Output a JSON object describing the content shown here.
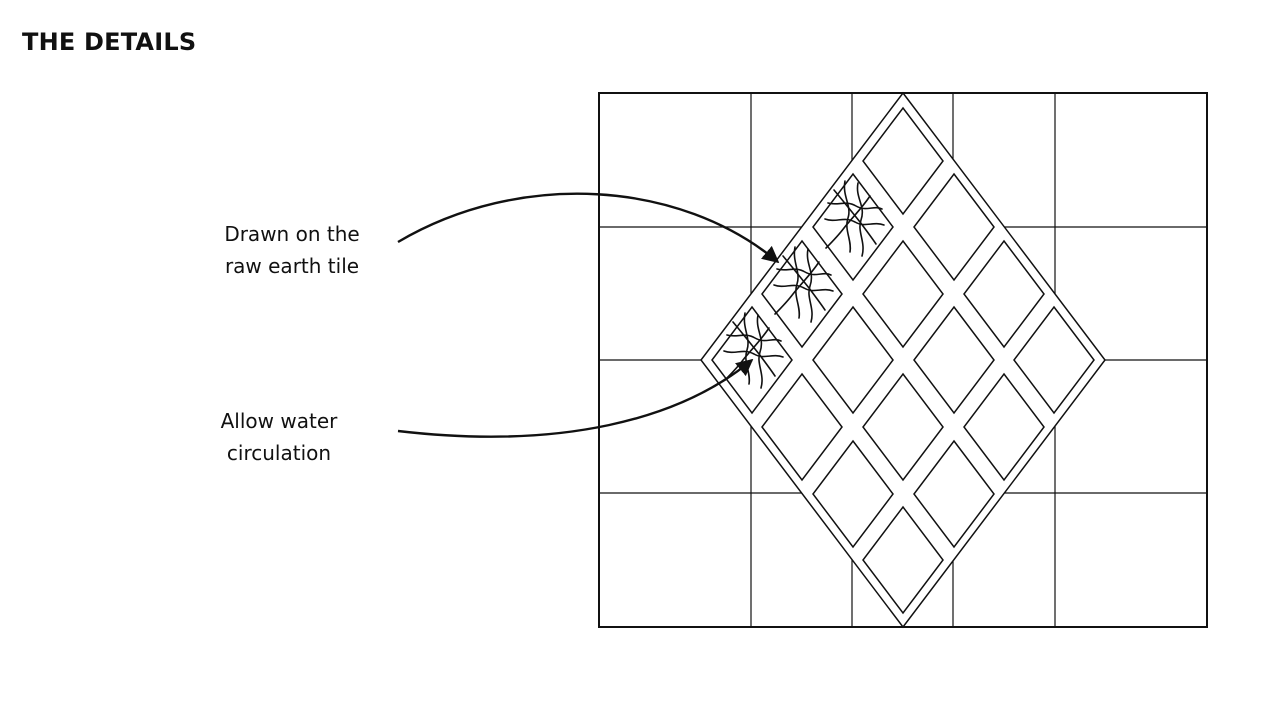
{
  "page": {
    "title": "THE DETAILS"
  },
  "annotations": {
    "raw_earth_tile": {
      "line1": "Drawn on the",
      "line2": "raw earth tile"
    },
    "water_circulation": {
      "line1": "Allow water",
      "line2": "circulation"
    }
  },
  "colors": {
    "line": "#111111",
    "background": "#ffffff"
  }
}
